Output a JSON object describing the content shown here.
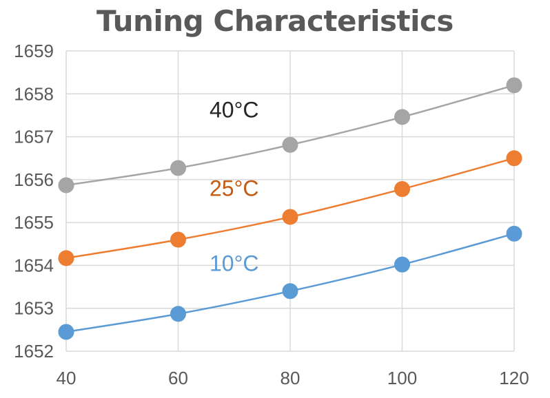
{
  "chart_data": {
    "type": "line",
    "title": "Tuning Characteristics",
    "xlabel": "",
    "ylabel": "",
    "x": [
      40,
      60,
      80,
      100,
      120
    ],
    "xlim": [
      40,
      120
    ],
    "ylim": [
      1652,
      1659
    ],
    "x_ticks": [
      "40",
      "60",
      "80",
      "100",
      "120"
    ],
    "y_ticks": [
      "1652",
      "1653",
      "1654",
      "1655",
      "1656",
      "1657",
      "1658",
      "1659"
    ],
    "grid": true,
    "legend": "none",
    "series": [
      {
        "name": "40°C",
        "color": "#a5a5a5",
        "label_color": "#262626",
        "label_at": [
          70,
          1657.45
        ],
        "values": [
          1655.87,
          1656.27,
          1656.81,
          1657.46,
          1658.2
        ]
      },
      {
        "name": "25°C",
        "color": "#ed7d31",
        "label_color": "#c55a11",
        "label_at": [
          70,
          1655.62
        ],
        "values": [
          1654.17,
          1654.6,
          1655.13,
          1655.78,
          1656.5
        ]
      },
      {
        "name": "10°C",
        "color": "#5b9bd5",
        "label_color": "#5b9bd5",
        "label_at": [
          70,
          1653.87
        ],
        "values": [
          1652.45,
          1652.87,
          1653.4,
          1654.02,
          1654.74
        ]
      }
    ]
  }
}
